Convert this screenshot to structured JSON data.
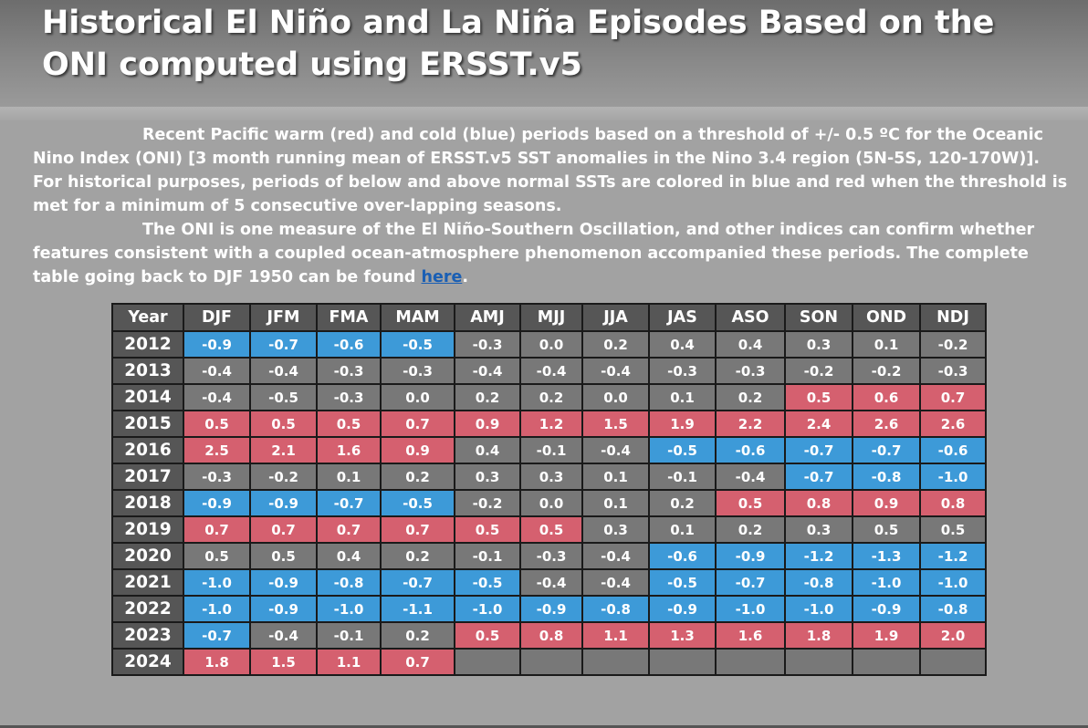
{
  "page": {
    "title": "Historical El Niño and La Niña Episodes Based on the ONI computed using ERSST.v5",
    "paragraph1": "Recent Pacific warm (red) and cold (blue) periods based on a threshold of +/- 0.5 ºC for the Oceanic Nino Index (ONI) [3 month running mean of ERSST.v5 SST anomalies in the Nino 3.4 region (5N-5S, 120-170W)]. For historical purposes, periods of below and above normal SSTs are colored in blue and red when the threshold is met for a minimum of 5 consecutive over-lapping seasons.",
    "paragraph2": "The ONI is one measure of the El Niño-Southern Oscillation, and other indices can confirm whether features consistent with a coupled ocean-atmosphere phenomenon accompanied these periods. The complete table going back to DJF 1950 can be found",
    "link_text": "here",
    "link_suffix": "."
  },
  "colors": {
    "warm": "#d5606f",
    "cold": "#3d9ad8",
    "neutral": "#787878"
  },
  "chart_data": {
    "type": "table",
    "title": "Oceanic Nino Index (ONI)",
    "year_header": "Year",
    "columns": [
      "DJF",
      "JFM",
      "FMA",
      "MAM",
      "AMJ",
      "MJJ",
      "JJA",
      "JAS",
      "ASO",
      "SON",
      "OND",
      "NDJ"
    ],
    "rows": [
      {
        "year": "2012",
        "values": [
          "-0.9",
          "-0.7",
          "-0.6",
          "-0.5",
          "-0.3",
          "0.0",
          "0.2",
          "0.4",
          "0.4",
          "0.3",
          "0.1",
          "-0.2"
        ],
        "status": [
          "cold",
          "cold",
          "cold",
          "cold",
          "neutral",
          "neutral",
          "neutral",
          "neutral",
          "neutral",
          "neutral",
          "neutral",
          "neutral"
        ]
      },
      {
        "year": "2013",
        "values": [
          "-0.4",
          "-0.4",
          "-0.3",
          "-0.3",
          "-0.4",
          "-0.4",
          "-0.4",
          "-0.3",
          "-0.3",
          "-0.2",
          "-0.2",
          "-0.3"
        ],
        "status": [
          "neutral",
          "neutral",
          "neutral",
          "neutral",
          "neutral",
          "neutral",
          "neutral",
          "neutral",
          "neutral",
          "neutral",
          "neutral",
          "neutral"
        ]
      },
      {
        "year": "2014",
        "values": [
          "-0.4",
          "-0.5",
          "-0.3",
          "0.0",
          "0.2",
          "0.2",
          "0.0",
          "0.1",
          "0.2",
          "0.5",
          "0.6",
          "0.7"
        ],
        "status": [
          "neutral",
          "neutral",
          "neutral",
          "neutral",
          "neutral",
          "neutral",
          "neutral",
          "neutral",
          "neutral",
          "warm",
          "warm",
          "warm"
        ]
      },
      {
        "year": "2015",
        "values": [
          "0.5",
          "0.5",
          "0.5",
          "0.7",
          "0.9",
          "1.2",
          "1.5",
          "1.9",
          "2.2",
          "2.4",
          "2.6",
          "2.6"
        ],
        "status": [
          "warm",
          "warm",
          "warm",
          "warm",
          "warm",
          "warm",
          "warm",
          "warm",
          "warm",
          "warm",
          "warm",
          "warm"
        ]
      },
      {
        "year": "2016",
        "values": [
          "2.5",
          "2.1",
          "1.6",
          "0.9",
          "0.4",
          "-0.1",
          "-0.4",
          "-0.5",
          "-0.6",
          "-0.7",
          "-0.7",
          "-0.6"
        ],
        "status": [
          "warm",
          "warm",
          "warm",
          "warm",
          "neutral",
          "neutral",
          "neutral",
          "cold",
          "cold",
          "cold",
          "cold",
          "cold"
        ]
      },
      {
        "year": "2017",
        "values": [
          "-0.3",
          "-0.2",
          "0.1",
          "0.2",
          "0.3",
          "0.3",
          "0.1",
          "-0.1",
          "-0.4",
          "-0.7",
          "-0.8",
          "-1.0"
        ],
        "status": [
          "neutral",
          "neutral",
          "neutral",
          "neutral",
          "neutral",
          "neutral",
          "neutral",
          "neutral",
          "neutral",
          "cold",
          "cold",
          "cold"
        ]
      },
      {
        "year": "2018",
        "values": [
          "-0.9",
          "-0.9",
          "-0.7",
          "-0.5",
          "-0.2",
          "0.0",
          "0.1",
          "0.2",
          "0.5",
          "0.8",
          "0.9",
          "0.8"
        ],
        "status": [
          "cold",
          "cold",
          "cold",
          "cold",
          "neutral",
          "neutral",
          "neutral",
          "neutral",
          "warm",
          "warm",
          "warm",
          "warm"
        ]
      },
      {
        "year": "2019",
        "values": [
          "0.7",
          "0.7",
          "0.7",
          "0.7",
          "0.5",
          "0.5",
          "0.3",
          "0.1",
          "0.2",
          "0.3",
          "0.5",
          "0.5"
        ],
        "status": [
          "warm",
          "warm",
          "warm",
          "warm",
          "warm",
          "warm",
          "neutral",
          "neutral",
          "neutral",
          "neutral",
          "neutral",
          "neutral"
        ]
      },
      {
        "year": "2020",
        "values": [
          "0.5",
          "0.5",
          "0.4",
          "0.2",
          "-0.1",
          "-0.3",
          "-0.4",
          "-0.6",
          "-0.9",
          "-1.2",
          "-1.3",
          "-1.2"
        ],
        "status": [
          "neutral",
          "neutral",
          "neutral",
          "neutral",
          "neutral",
          "neutral",
          "neutral",
          "cold",
          "cold",
          "cold",
          "cold",
          "cold"
        ]
      },
      {
        "year": "2021",
        "values": [
          "-1.0",
          "-0.9",
          "-0.8",
          "-0.7",
          "-0.5",
          "-0.4",
          "-0.4",
          "-0.5",
          "-0.7",
          "-0.8",
          "-1.0",
          "-1.0"
        ],
        "status": [
          "cold",
          "cold",
          "cold",
          "cold",
          "cold",
          "neutral",
          "neutral",
          "cold",
          "cold",
          "cold",
          "cold",
          "cold"
        ]
      },
      {
        "year": "2022",
        "values": [
          "-1.0",
          "-0.9",
          "-1.0",
          "-1.1",
          "-1.0",
          "-0.9",
          "-0.8",
          "-0.9",
          "-1.0",
          "-1.0",
          "-0.9",
          "-0.8"
        ],
        "status": [
          "cold",
          "cold",
          "cold",
          "cold",
          "cold",
          "cold",
          "cold",
          "cold",
          "cold",
          "cold",
          "cold",
          "cold"
        ]
      },
      {
        "year": "2023",
        "values": [
          "-0.7",
          "-0.4",
          "-0.1",
          "0.2",
          "0.5",
          "0.8",
          "1.1",
          "1.3",
          "1.6",
          "1.8",
          "1.9",
          "2.0"
        ],
        "status": [
          "cold",
          "neutral",
          "neutral",
          "neutral",
          "warm",
          "warm",
          "warm",
          "warm",
          "warm",
          "warm",
          "warm",
          "warm"
        ]
      },
      {
        "year": "2024",
        "values": [
          "1.8",
          "1.5",
          "1.1",
          "0.7",
          "",
          "",
          "",
          "",
          "",
          "",
          "",
          ""
        ],
        "status": [
          "warm",
          "warm",
          "warm",
          "warm",
          "empty",
          "empty",
          "empty",
          "empty",
          "empty",
          "empty",
          "empty",
          "empty"
        ]
      }
    ],
    "warm_threshold": 0.5,
    "cold_threshold": -0.5
  }
}
